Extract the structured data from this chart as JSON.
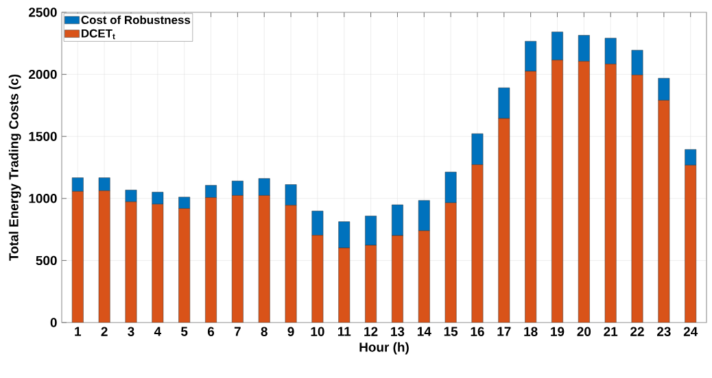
{
  "chart_data": {
    "type": "bar",
    "stacked": true,
    "xlabel": "Hour (h)",
    "ylabel": "Total Energy Trading Costs (c)",
    "categories": [
      "1",
      "2",
      "3",
      "4",
      "5",
      "6",
      "7",
      "8",
      "9",
      "10",
      "11",
      "12",
      "13",
      "14",
      "15",
      "16",
      "17",
      "18",
      "19",
      "20",
      "21",
      "22",
      "23",
      "24"
    ],
    "series": [
      {
        "name": "DCET$_{t}$",
        "color": "#d95319",
        "values": [
          1057,
          1062,
          973,
          954,
          919,
          1007,
          1024,
          1024,
          945,
          703,
          601,
          623,
          701,
          740,
          965,
          1272,
          1645,
          2025,
          2115,
          2105,
          2083,
          1995,
          1791,
          1268
        ]
      },
      {
        "name": "Cost of Robustness",
        "color": "#0072bd",
        "values": [
          110,
          105,
          95,
          97,
          92,
          99,
          117,
          137,
          167,
          196,
          212,
          236,
          248,
          244,
          248,
          250,
          247,
          242,
          227,
          210,
          209,
          200,
          178,
          127
        ]
      }
    ],
    "ylim": [
      0,
      2500
    ],
    "yticks": [
      0,
      500,
      1000,
      1500,
      2000,
      2500
    ],
    "grid": true,
    "legend": "top left"
  }
}
